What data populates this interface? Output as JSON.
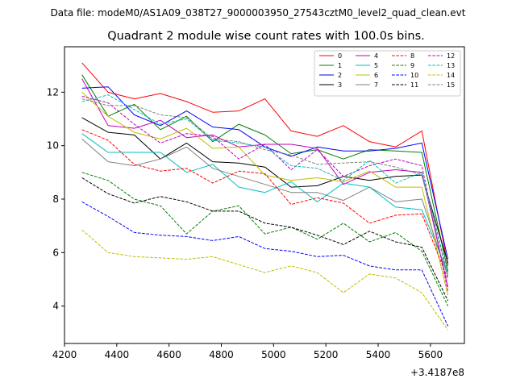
{
  "chart_data": {
    "type": "line",
    "suptitle": "Data file: modeM0/AS1A09_038T27_9000003950_27543cztM0_level2_quad_clean.evt",
    "title": "Quadrant 2 module wise count rates with 100.0s bins.",
    "xlabel": "",
    "ylabel": "",
    "x_offset_label": "+3.4187e8",
    "xlim": [
      4200,
      5730
    ],
    "ylim": [
      2.6,
      13.7
    ],
    "x_ticks": [
      4200,
      4400,
      4600,
      4800,
      5000,
      5200,
      5400,
      5600
    ],
    "x_tick_labels": [
      "4200",
      "4400",
      "4600",
      "4800",
      "5000",
      "5200",
      "5400",
      "5600"
    ],
    "y_ticks": [
      4,
      6,
      8,
      10,
      12
    ],
    "y_tick_labels": [
      "4",
      "6",
      "8",
      "10",
      "12"
    ],
    "legend_position": "top-right",
    "grid": false,
    "x": [
      4267,
      4367,
      4467,
      4567,
      4667,
      4767,
      4867,
      4967,
      5067,
      5167,
      5267,
      5367,
      5467,
      5567,
      5667
    ],
    "series": [
      {
        "name": "0",
        "color": "#ff0000",
        "dash": "solid",
        "values": [
          13.1,
          12.0,
          11.75,
          11.95,
          11.65,
          11.25,
          11.3,
          11.75,
          10.55,
          10.35,
          10.75,
          10.15,
          9.95,
          10.55,
          5.5
        ]
      },
      {
        "name": "1",
        "color": "#008000",
        "dash": "solid",
        "values": [
          12.65,
          11.1,
          11.55,
          10.6,
          11.1,
          10.15,
          10.8,
          10.4,
          9.7,
          9.85,
          9.5,
          9.85,
          9.8,
          9.75,
          5.3
        ]
      },
      {
        "name": "2",
        "color": "#0000ff",
        "dash": "solid",
        "values": [
          12.15,
          12.2,
          11.15,
          10.75,
          11.3,
          10.7,
          10.6,
          9.95,
          9.6,
          9.95,
          9.8,
          9.8,
          9.9,
          10.1,
          5.75
        ]
      },
      {
        "name": "3",
        "color": "#000000",
        "dash": "solid",
        "values": [
          11.05,
          10.5,
          10.4,
          9.5,
          10.1,
          9.4,
          9.35,
          9.2,
          8.45,
          8.5,
          8.85,
          8.7,
          8.85,
          8.9,
          5.6
        ]
      },
      {
        "name": "4",
        "color": "#bf00bf",
        "dash": "solid",
        "values": [
          12.5,
          10.75,
          10.65,
          10.95,
          10.3,
          10.4,
          9.95,
          10.05,
          10.05,
          9.9,
          8.55,
          9.0,
          9.1,
          9.0,
          4.7
        ]
      },
      {
        "name": "5",
        "color": "#00bfbf",
        "dash": "solid",
        "values": [
          10.45,
          9.75,
          9.75,
          9.75,
          9.0,
          9.3,
          8.45,
          8.25,
          8.65,
          7.9,
          8.6,
          8.45,
          7.7,
          7.6,
          5.25
        ]
      },
      {
        "name": "6",
        "color": "#bfbf00",
        "dash": "solid",
        "values": [
          12.0,
          11.1,
          10.5,
          10.25,
          10.65,
          9.9,
          9.95,
          8.9,
          8.7,
          8.8,
          8.65,
          9.05,
          8.45,
          8.45,
          4.4
        ]
      },
      {
        "name": "7",
        "color": "#808080",
        "dash": "solid",
        "values": [
          10.25,
          9.4,
          9.25,
          9.5,
          9.95,
          9.15,
          8.85,
          8.55,
          8.25,
          8.25,
          7.95,
          8.45,
          7.9,
          8.0,
          5.1
        ]
      },
      {
        "name": "8",
        "color": "#ff0000",
        "dash": "dashed",
        "values": [
          10.6,
          10.2,
          9.3,
          9.05,
          9.15,
          8.6,
          9.05,
          8.95,
          7.8,
          8.05,
          7.85,
          7.1,
          7.4,
          7.45,
          5.0
        ]
      },
      {
        "name": "9",
        "color": "#008000",
        "dash": "dashed",
        "values": [
          9.0,
          8.7,
          8.0,
          7.75,
          6.7,
          7.55,
          7.75,
          6.7,
          6.95,
          6.5,
          7.1,
          6.4,
          6.75,
          6.05,
          4.0
        ]
      },
      {
        "name": "10",
        "color": "#0000ff",
        "dash": "dashed",
        "values": [
          7.9,
          7.35,
          6.75,
          6.65,
          6.6,
          6.45,
          6.6,
          6.15,
          6.05,
          5.85,
          5.9,
          5.5,
          5.35,
          5.35,
          3.25
        ]
      },
      {
        "name": "11",
        "color": "#000000",
        "dash": "dashed",
        "values": [
          8.8,
          8.2,
          7.85,
          8.1,
          7.9,
          7.55,
          7.55,
          7.1,
          6.95,
          6.65,
          6.3,
          6.8,
          6.4,
          6.2,
          4.2
        ]
      },
      {
        "name": "12",
        "color": "#bf00bf",
        "dash": "dashed",
        "values": [
          11.85,
          11.6,
          10.8,
          10.1,
          10.45,
          10.35,
          9.5,
          10.05,
          9.1,
          9.85,
          8.85,
          9.25,
          9.5,
          9.25,
          4.55
        ]
      },
      {
        "name": "13",
        "color": "#00bfbf",
        "dash": "dashed",
        "values": [
          11.65,
          11.9,
          11.35,
          10.8,
          11.0,
          10.2,
          10.1,
          9.95,
          9.25,
          9.15,
          8.7,
          9.45,
          8.6,
          9.0,
          5.2
        ]
      },
      {
        "name": "14",
        "color": "#bfbf00",
        "dash": "dashed",
        "values": [
          6.85,
          6.0,
          5.85,
          5.8,
          5.75,
          5.85,
          5.55,
          5.25,
          5.5,
          5.25,
          4.5,
          5.2,
          5.05,
          4.5,
          3.1
        ]
      },
      {
        "name": "15",
        "color": "#808080",
        "dash": "dashed",
        "values": [
          11.75,
          11.5,
          11.5,
          11.15,
          11.05,
          10.25,
          10.15,
          9.85,
          9.65,
          9.3,
          9.35,
          9.4,
          9.2,
          8.9,
          5.1
        ]
      }
    ]
  }
}
